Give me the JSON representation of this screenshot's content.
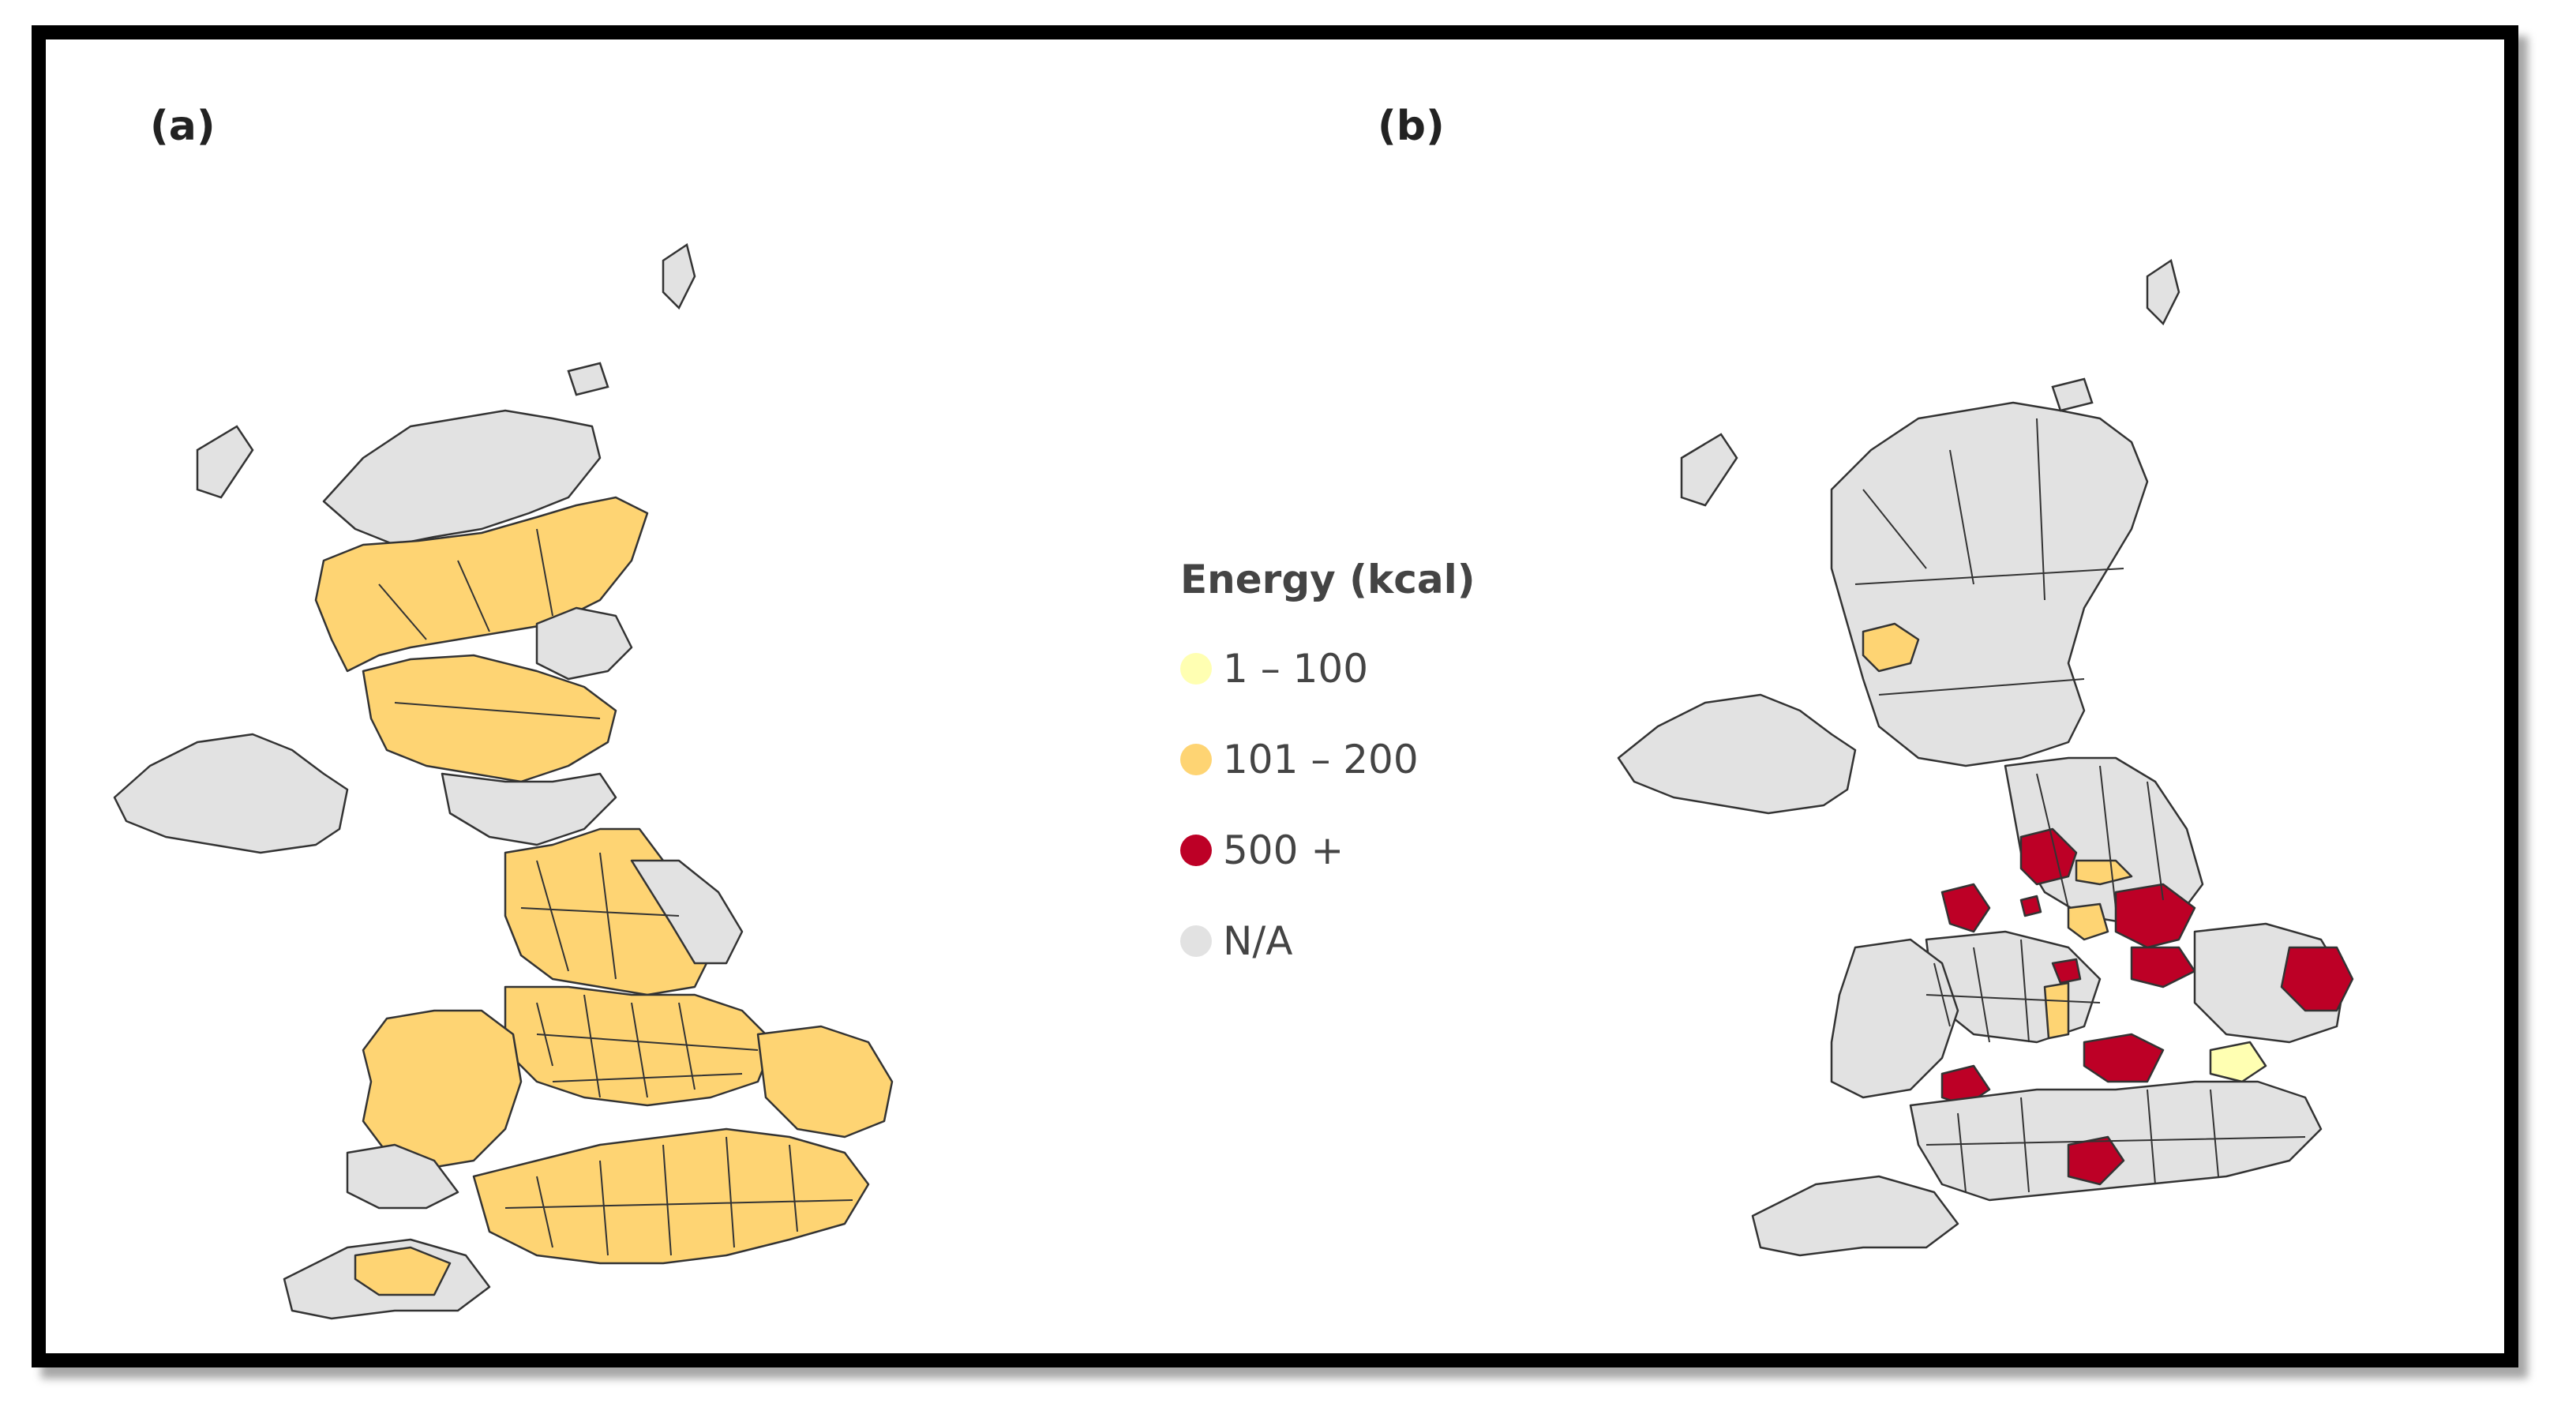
{
  "panels": {
    "a": {
      "label": "(a)"
    },
    "b": {
      "label": "(b)"
    }
  },
  "legend": {
    "title": "Energy (kcal)",
    "items": [
      {
        "label": "1 – 100",
        "color": "#ffffb2"
      },
      {
        "label": "101 – 200",
        "color": "#fed473"
      },
      {
        "label": "500 +",
        "color": "#bd0026"
      },
      {
        "label": "N/A",
        "color": "#e2e2e2"
      }
    ]
  },
  "colors": {
    "na": "#e2e2e2",
    "low": "#ffffb2",
    "mid": "#fed473",
    "high": "#bd0026",
    "border": "#333333"
  }
}
